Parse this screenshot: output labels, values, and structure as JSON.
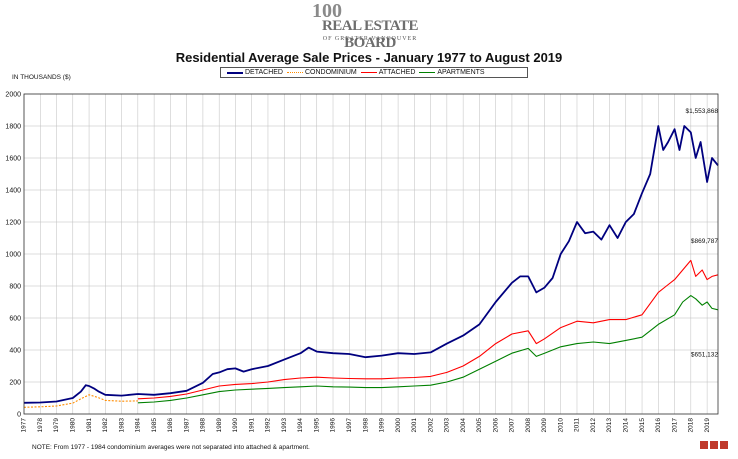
{
  "logo": {
    "number": "100",
    "name": "REAL ESTATE BOARD",
    "subtitle": "OF GREATER VANCOUVER"
  },
  "header": {
    "title": "Residential Average Sale Prices  -  January 1977 to August 2019"
  },
  "units_label": "IN THOUSANDS ($)",
  "note": "NOTE:  From 1977 - 1984 condominium averages were not separated into attached & apartment.",
  "chart_data": {
    "type": "line",
    "title": "Residential Average Sale Prices  -  January 1977 to August 2019",
    "ylabel": "IN THOUSANDS ($)",
    "xlabel": "",
    "xlim": [
      1977,
      2019.67
    ],
    "ylim": [
      0,
      2000
    ],
    "yticks": [
      0,
      200,
      400,
      600,
      800,
      1000,
      1200,
      1400,
      1600,
      1800,
      2000
    ],
    "xticks": [
      1977,
      1978,
      1979,
      1980,
      1981,
      1982,
      1983,
      1984,
      1985,
      1986,
      1987,
      1988,
      1989,
      1990,
      1991,
      1992,
      1993,
      1994,
      1995,
      1996,
      1997,
      1998,
      1999,
      2000,
      2001,
      2002,
      2003,
      2004,
      2005,
      2006,
      2007,
      2008,
      2009,
      2010,
      2011,
      2012,
      2013,
      2014,
      2015,
      2016,
      2017,
      2018,
      2019
    ],
    "grid": true,
    "legend_position": "top",
    "annotations": [
      {
        "text": "$1,553,868",
        "x": 2019.67,
        "y": 1880
      },
      {
        "text": "$869,787",
        "x": 2019.67,
        "y": 1070
      },
      {
        "text": "$651,132",
        "x": 2019.67,
        "y": 360
      }
    ],
    "series": [
      {
        "name": "DETACHED",
        "color": "#00007f",
        "style": "solid",
        "x": [
          1977,
          1978,
          1979,
          1980,
          1980.5,
          1980.8,
          1981.0,
          1981.3,
          1981.6,
          1982,
          1983,
          1984,
          1985,
          1986,
          1987,
          1988,
          1988.6,
          1989,
          1989.5,
          1990,
          1990.5,
          1991,
          1992,
          1993,
          1994,
          1994.5,
          1995,
          1996,
          1997,
          1998,
          1999,
          2000,
          2001,
          2002,
          2003,
          2004,
          2005,
          2006,
          2007,
          2007.5,
          2008,
          2008.5,
          2009,
          2009.5,
          2010,
          2010.5,
          2011,
          2011.5,
          2012,
          2012.5,
          2013,
          2013.5,
          2014,
          2014.5,
          2015,
          2015.5,
          2016,
          2016.3,
          2016.6,
          2017,
          2017.3,
          2017.6,
          2018,
          2018.3,
          2018.6,
          2019,
          2019.3,
          2019.67
        ],
        "y": [
          70,
          72,
          78,
          100,
          140,
          180,
          175,
          160,
          140,
          120,
          115,
          125,
          120,
          130,
          145,
          195,
          250,
          260,
          280,
          285,
          265,
          280,
          300,
          340,
          380,
          415,
          390,
          380,
          375,
          355,
          365,
          380,
          375,
          385,
          440,
          490,
          560,
          700,
          820,
          860,
          860,
          760,
          790,
          850,
          1000,
          1080,
          1200,
          1130,
          1140,
          1090,
          1180,
          1100,
          1200,
          1250,
          1380,
          1500,
          1800,
          1650,
          1700,
          1780,
          1650,
          1800,
          1760,
          1600,
          1700,
          1450,
          1600,
          1554
        ]
      },
      {
        "name": "CONDOMINIUM",
        "color": "#ff8c00",
        "style": "dotted",
        "x": [
          1977,
          1978,
          1979,
          1980,
          1980.5,
          1981,
          1981.5,
          1982,
          1983,
          1984
        ],
        "y": [
          42,
          45,
          50,
          68,
          95,
          120,
          105,
          85,
          80,
          82
        ]
      },
      {
        "name": "ATTACHED",
        "color": "#ff0000",
        "style": "solid",
        "x": [
          1984,
          1985,
          1986,
          1987,
          1988,
          1989,
          1990,
          1991,
          1992,
          1993,
          1994,
          1995,
          1996,
          1997,
          1998,
          1999,
          2000,
          2001,
          2002,
          2003,
          2004,
          2005,
          2006,
          2007,
          2008,
          2008.5,
          2009,
          2010,
          2011,
          2012,
          2013,
          2014,
          2015,
          2016,
          2016.5,
          2017,
          2017.5,
          2018,
          2018.3,
          2018.7,
          2019,
          2019.3,
          2019.67
        ],
        "y": [
          95,
          100,
          110,
          125,
          150,
          175,
          185,
          190,
          200,
          215,
          225,
          230,
          225,
          222,
          220,
          220,
          225,
          228,
          235,
          260,
          300,
          360,
          440,
          500,
          520,
          440,
          470,
          540,
          580,
          570,
          590,
          590,
          620,
          760,
          800,
          840,
          900,
          960,
          860,
          900,
          840,
          860,
          870
        ]
      },
      {
        "name": "APARTMENTS",
        "color": "#008000",
        "style": "solid",
        "x": [
          1984,
          1985,
          1986,
          1987,
          1988,
          1989,
          1990,
          1991,
          1992,
          1993,
          1994,
          1995,
          1996,
          1997,
          1998,
          1999,
          2000,
          2001,
          2002,
          2003,
          2004,
          2005,
          2006,
          2007,
          2008,
          2008.5,
          2009,
          2010,
          2011,
          2012,
          2013,
          2014,
          2015,
          2016,
          2017,
          2017.5,
          2018,
          2018.3,
          2018.7,
          2019,
          2019.3,
          2019.67
        ],
        "y": [
          70,
          75,
          85,
          100,
          120,
          140,
          150,
          155,
          160,
          165,
          170,
          175,
          170,
          168,
          165,
          165,
          170,
          175,
          180,
          200,
          230,
          280,
          330,
          380,
          410,
          360,
          380,
          420,
          440,
          450,
          440,
          460,
          480,
          560,
          620,
          700,
          740,
          720,
          680,
          700,
          660,
          651
        ]
      }
    ]
  },
  "badge_colors": [
    "#c0392b",
    "#c0392b",
    "#c0392b"
  ]
}
